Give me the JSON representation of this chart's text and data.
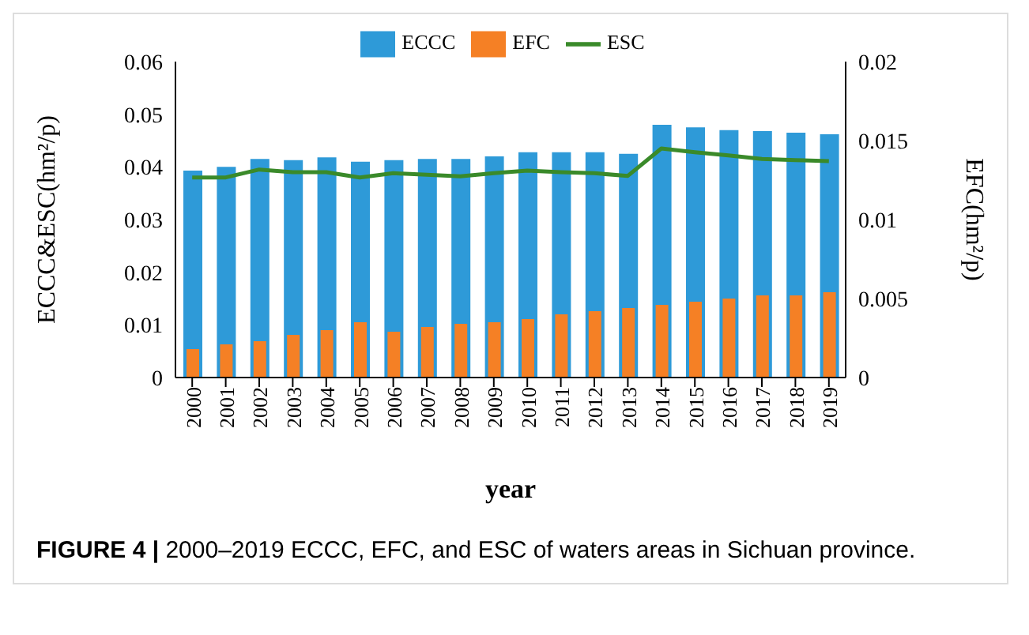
{
  "chart_data": {
    "type": "bar",
    "xlabel": "year",
    "ylabel": "ECCC&ESC(hm²/p)",
    "y2label": "EFC(hm²/p)",
    "categories": [
      "2000",
      "2001",
      "2002",
      "2003",
      "2004",
      "2005",
      "2006",
      "2007",
      "2008",
      "2009",
      "2010",
      "2011",
      "2012",
      "2013",
      "2014",
      "2015",
      "2016",
      "2017",
      "2018",
      "2019"
    ],
    "series": [
      {
        "name": "ECCC",
        "color": "#2e9ad8",
        "values": [
          0.0393,
          0.04,
          0.0415,
          0.0413,
          0.0418,
          0.041,
          0.0413,
          0.0415,
          0.0415,
          0.042,
          0.0428,
          0.0428,
          0.0428,
          0.0425,
          0.048,
          0.0475,
          0.047,
          0.0468,
          0.0465,
          0.0462
        ]
      },
      {
        "name": "EFC",
        "axis": "y2",
        "color": "#f58025",
        "values": [
          0.0018,
          0.0021,
          0.0023,
          0.0027,
          0.003,
          0.0035,
          0.0029,
          0.0032,
          0.0034,
          0.0035,
          0.0037,
          0.004,
          0.0042,
          0.0044,
          0.0046,
          0.0048,
          0.005,
          0.0052,
          0.0052,
          0.0054
        ]
      },
      {
        "name": "ESC",
        "type": "line",
        "color": "#3a8a2a",
        "values": [
          0.038,
          0.038,
          0.0395,
          0.039,
          0.039,
          0.038,
          0.0388,
          0.0385,
          0.0382,
          0.0388,
          0.0393,
          0.039,
          0.0388,
          0.0383,
          0.0435,
          0.0428,
          0.0422,
          0.0415,
          0.0413,
          0.0411
        ]
      }
    ],
    "ylim": [
      0,
      0.06
    ],
    "yticks": [
      0,
      0.01,
      0.02,
      0.03,
      0.04,
      0.05,
      0.06
    ],
    "y2lim": [
      0,
      0.02
    ],
    "y2ticks": [
      0,
      0.005,
      0.01,
      0.015,
      0.02
    ],
    "legend": "top",
    "grid": false,
    "marker": "none",
    "line_style": "solid",
    "annotations": [
      "FIGURE 4 | 2000–2019 ECCC, EFC, and ESC of waters areas in Sichuan province."
    ]
  }
}
